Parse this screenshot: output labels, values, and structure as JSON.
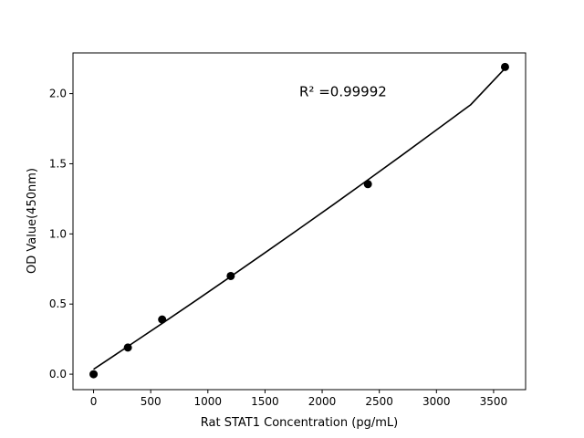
{
  "chart_data": {
    "type": "scatter",
    "title": "",
    "xlabel": "Rat STAT1 Concentration (pg/mL)",
    "ylabel": "OD Value(450nm)",
    "xlim": [
      -180,
      3780
    ],
    "ylim": [
      -0.11,
      2.29
    ],
    "xticks": [
      0,
      500,
      1000,
      1500,
      2000,
      2500,
      3000,
      3500
    ],
    "yticks": [
      0.0,
      0.5,
      1.0,
      1.5,
      2.0
    ],
    "xtick_labels": [
      "0",
      "500",
      "1000",
      "1500",
      "2000",
      "2500",
      "3000",
      "3500"
    ],
    "ytick_labels": [
      "0.0",
      "0.5",
      "1.0",
      "1.5",
      "2.0"
    ],
    "grid": false,
    "points": {
      "x": [
        0,
        300,
        600,
        1200,
        2400,
        3600
      ],
      "y": [
        0.0,
        0.19,
        0.39,
        0.7,
        1.355,
        2.19
      ]
    },
    "fit_curve": {
      "x": [
        0,
        300,
        600,
        900,
        1200,
        1500,
        1800,
        2100,
        2400,
        2700,
        3000,
        3300,
        3600
      ],
      "y": [
        0.035,
        0.198,
        0.362,
        0.528,
        0.696,
        0.866,
        1.037,
        1.21,
        1.385,
        1.562,
        1.741,
        1.921,
        2.18
      ]
    },
    "annotation": "R² =0.99992",
    "annotation_pos": [
      1800,
      1.98
    ],
    "colors": {
      "points": "#000000",
      "line": "#000000"
    }
  }
}
